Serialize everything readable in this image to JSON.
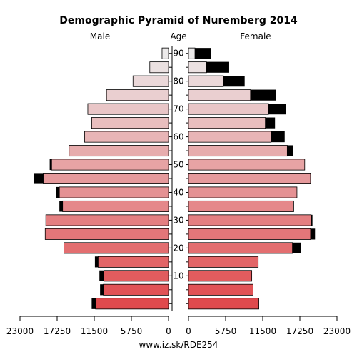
{
  "chart_data": {
    "type": "population-pyramid",
    "title": "Demographic Pyramid of Nuremberg 2014",
    "left_label": "Male",
    "center_label": "Age",
    "right_label": "Female",
    "footer": "www.iz.sk/RDE254",
    "x_max": 23000,
    "x_ticks_left": [
      "23000",
      "17250",
      "11500",
      "5750",
      "0"
    ],
    "x_tick_values_left": [
      23000,
      17250,
      11500,
      5750,
      0
    ],
    "x_ticks_right": [
      "0",
      "5750",
      "11500",
      "17250",
      "23000"
    ],
    "x_tick_values_right": [
      0,
      5750,
      11500,
      17250,
      23000
    ],
    "age_groups": [
      "0-4",
      "5-9",
      "10-14",
      "15-19",
      "20-24",
      "25-29",
      "30-34",
      "35-39",
      "40-44",
      "45-49",
      "50-54",
      "55-59",
      "60-64",
      "65-69",
      "70-74",
      "75-79",
      "80-84",
      "85-89",
      "90+"
    ],
    "age_ticks": [
      10,
      20,
      30,
      40,
      50,
      60,
      70,
      80,
      90
    ],
    "age_tick_labels": [
      "10",
      "20",
      "30",
      "40",
      "50",
      "60",
      "70",
      "80",
      "90"
    ],
    "series": [
      {
        "name": "Male",
        "values": [
          11300,
          10100,
          10000,
          10900,
          16200,
          19100,
          19000,
          16400,
          16900,
          19400,
          18100,
          15400,
          13000,
          11900,
          12500,
          9600,
          5500,
          2900,
          1000
        ],
        "excess": [
          600,
          500,
          700,
          500,
          0,
          0,
          0,
          500,
          500,
          1500,
          300,
          0,
          0,
          0,
          0,
          0,
          0,
          0,
          0
        ]
      },
      {
        "name": "Female",
        "values": [
          10900,
          10000,
          9800,
          10800,
          16100,
          18900,
          19000,
          16300,
          16800,
          18900,
          18000,
          15300,
          12800,
          11900,
          12400,
          9600,
          5400,
          2800,
          1000
        ],
        "excess": [
          0,
          0,
          0,
          0,
          1300,
          700,
          200,
          0,
          0,
          0,
          0,
          900,
          2100,
          1500,
          2700,
          3900,
          3300,
          3500,
          2500
        ]
      }
    ],
    "colors": {
      "excess": "#000000",
      "bar_stroke": "#000000",
      "young": "#e04a4d",
      "old": "#eceaea"
    }
  }
}
